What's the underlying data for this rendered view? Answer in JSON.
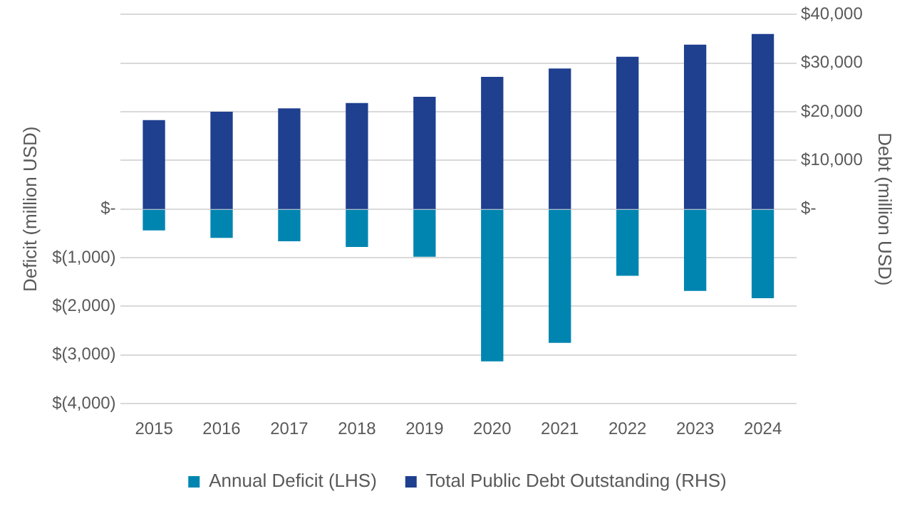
{
  "chart_data": {
    "type": "bar",
    "ylabel": "Deficit (million USD)",
    "y2label": "Debt (million USD)",
    "categories": [
      "2015",
      "2016",
      "2017",
      "2018",
      "2019",
      "2020",
      "2021",
      "2022",
      "2023",
      "2024"
    ],
    "series": [
      {
        "name": "Annual Deficit (LHS)",
        "color": "#0085b0",
        "values": [
          -440,
          -590,
          -660,
          -780,
          -980,
          -3130,
          -2750,
          -1370,
          -1680,
          -1830
        ]
      },
      {
        "name": "Total Public Debt Outstanding (RHS)",
        "color": "#1f3f8f",
        "axis": "y2",
        "values": [
          18300,
          20000,
          20700,
          21800,
          23100,
          27200,
          28900,
          31300,
          33800,
          36000
        ]
      }
    ],
    "ylim": [
      -4000,
      4000
    ],
    "yticks": [
      {
        "value": -4000,
        "label": "$(4,000)"
      },
      {
        "value": -3000,
        "label": "$(3,000)"
      },
      {
        "value": -2000,
        "label": "$(2,000)"
      },
      {
        "value": -1000,
        "label": "$(1,000)"
      },
      {
        "value": 0,
        "label": "$-"
      },
      {
        "value": 1000,
        "label": null
      },
      {
        "value": 2000,
        "label": null
      },
      {
        "value": 3000,
        "label": null
      },
      {
        "value": 4000,
        "label": null
      }
    ],
    "y2lim": [
      -40000,
      40000
    ],
    "y2ticks": [
      {
        "value": -40000,
        "label": null
      },
      {
        "value": -30000,
        "label": null
      },
      {
        "value": -20000,
        "label": null
      },
      {
        "value": -10000,
        "label": null
      },
      {
        "value": 0,
        "label": "$-"
      },
      {
        "value": 10000,
        "label": "$10,000"
      },
      {
        "value": 20000,
        "label": "$20,000"
      },
      {
        "value": 30000,
        "label": "$30,000"
      },
      {
        "value": 40000,
        "label": "$40,000"
      }
    ],
    "stacked": true,
    "grid": "y",
    "legend": "bottom"
  }
}
